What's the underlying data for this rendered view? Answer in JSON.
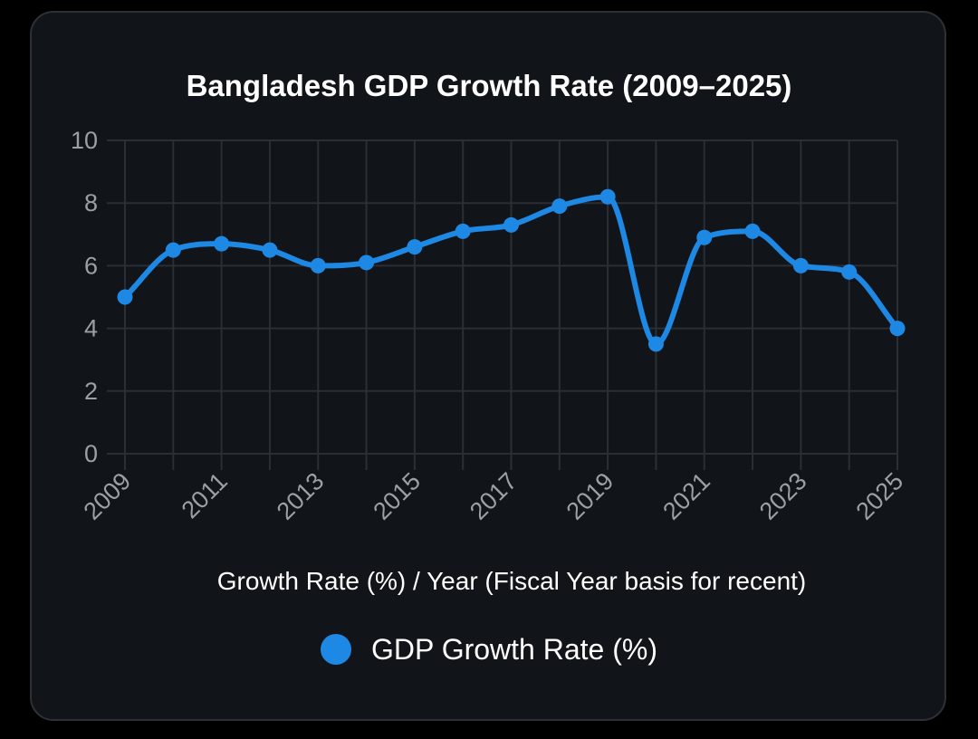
{
  "chart_data": {
    "type": "line",
    "title": "Bangladesh GDP Growth Rate (2009–2025)",
    "xlabel": "Growth Rate (%) / Year (Fiscal Year basis for recent)",
    "ylabel": "",
    "x": [
      2009,
      2010,
      2011,
      2012,
      2013,
      2014,
      2015,
      2016,
      2017,
      2018,
      2019,
      2020,
      2021,
      2022,
      2023,
      2024,
      2025
    ],
    "x_tick_labels": [
      "2009",
      "2011",
      "2013",
      "2015",
      "2017",
      "2019",
      "2021",
      "2023",
      "2025"
    ],
    "y_ticks": [
      0,
      2,
      4,
      6,
      8,
      10
    ],
    "ylim": [
      0,
      10
    ],
    "grid": true,
    "legend_position": "bottom",
    "series": [
      {
        "name": "GDP Growth Rate (%)",
        "color": "#1e88e5",
        "values": [
          5.0,
          6.5,
          6.7,
          6.5,
          6.0,
          6.1,
          6.6,
          7.1,
          7.3,
          7.9,
          8.2,
          3.5,
          6.9,
          7.1,
          6.0,
          5.8,
          4.0
        ]
      }
    ]
  },
  "colors": {
    "background": "#000000",
    "card": "#111519",
    "grid": "#2a2f35",
    "tick_text": "#9aa0a6",
    "line": "#1e88e5"
  }
}
